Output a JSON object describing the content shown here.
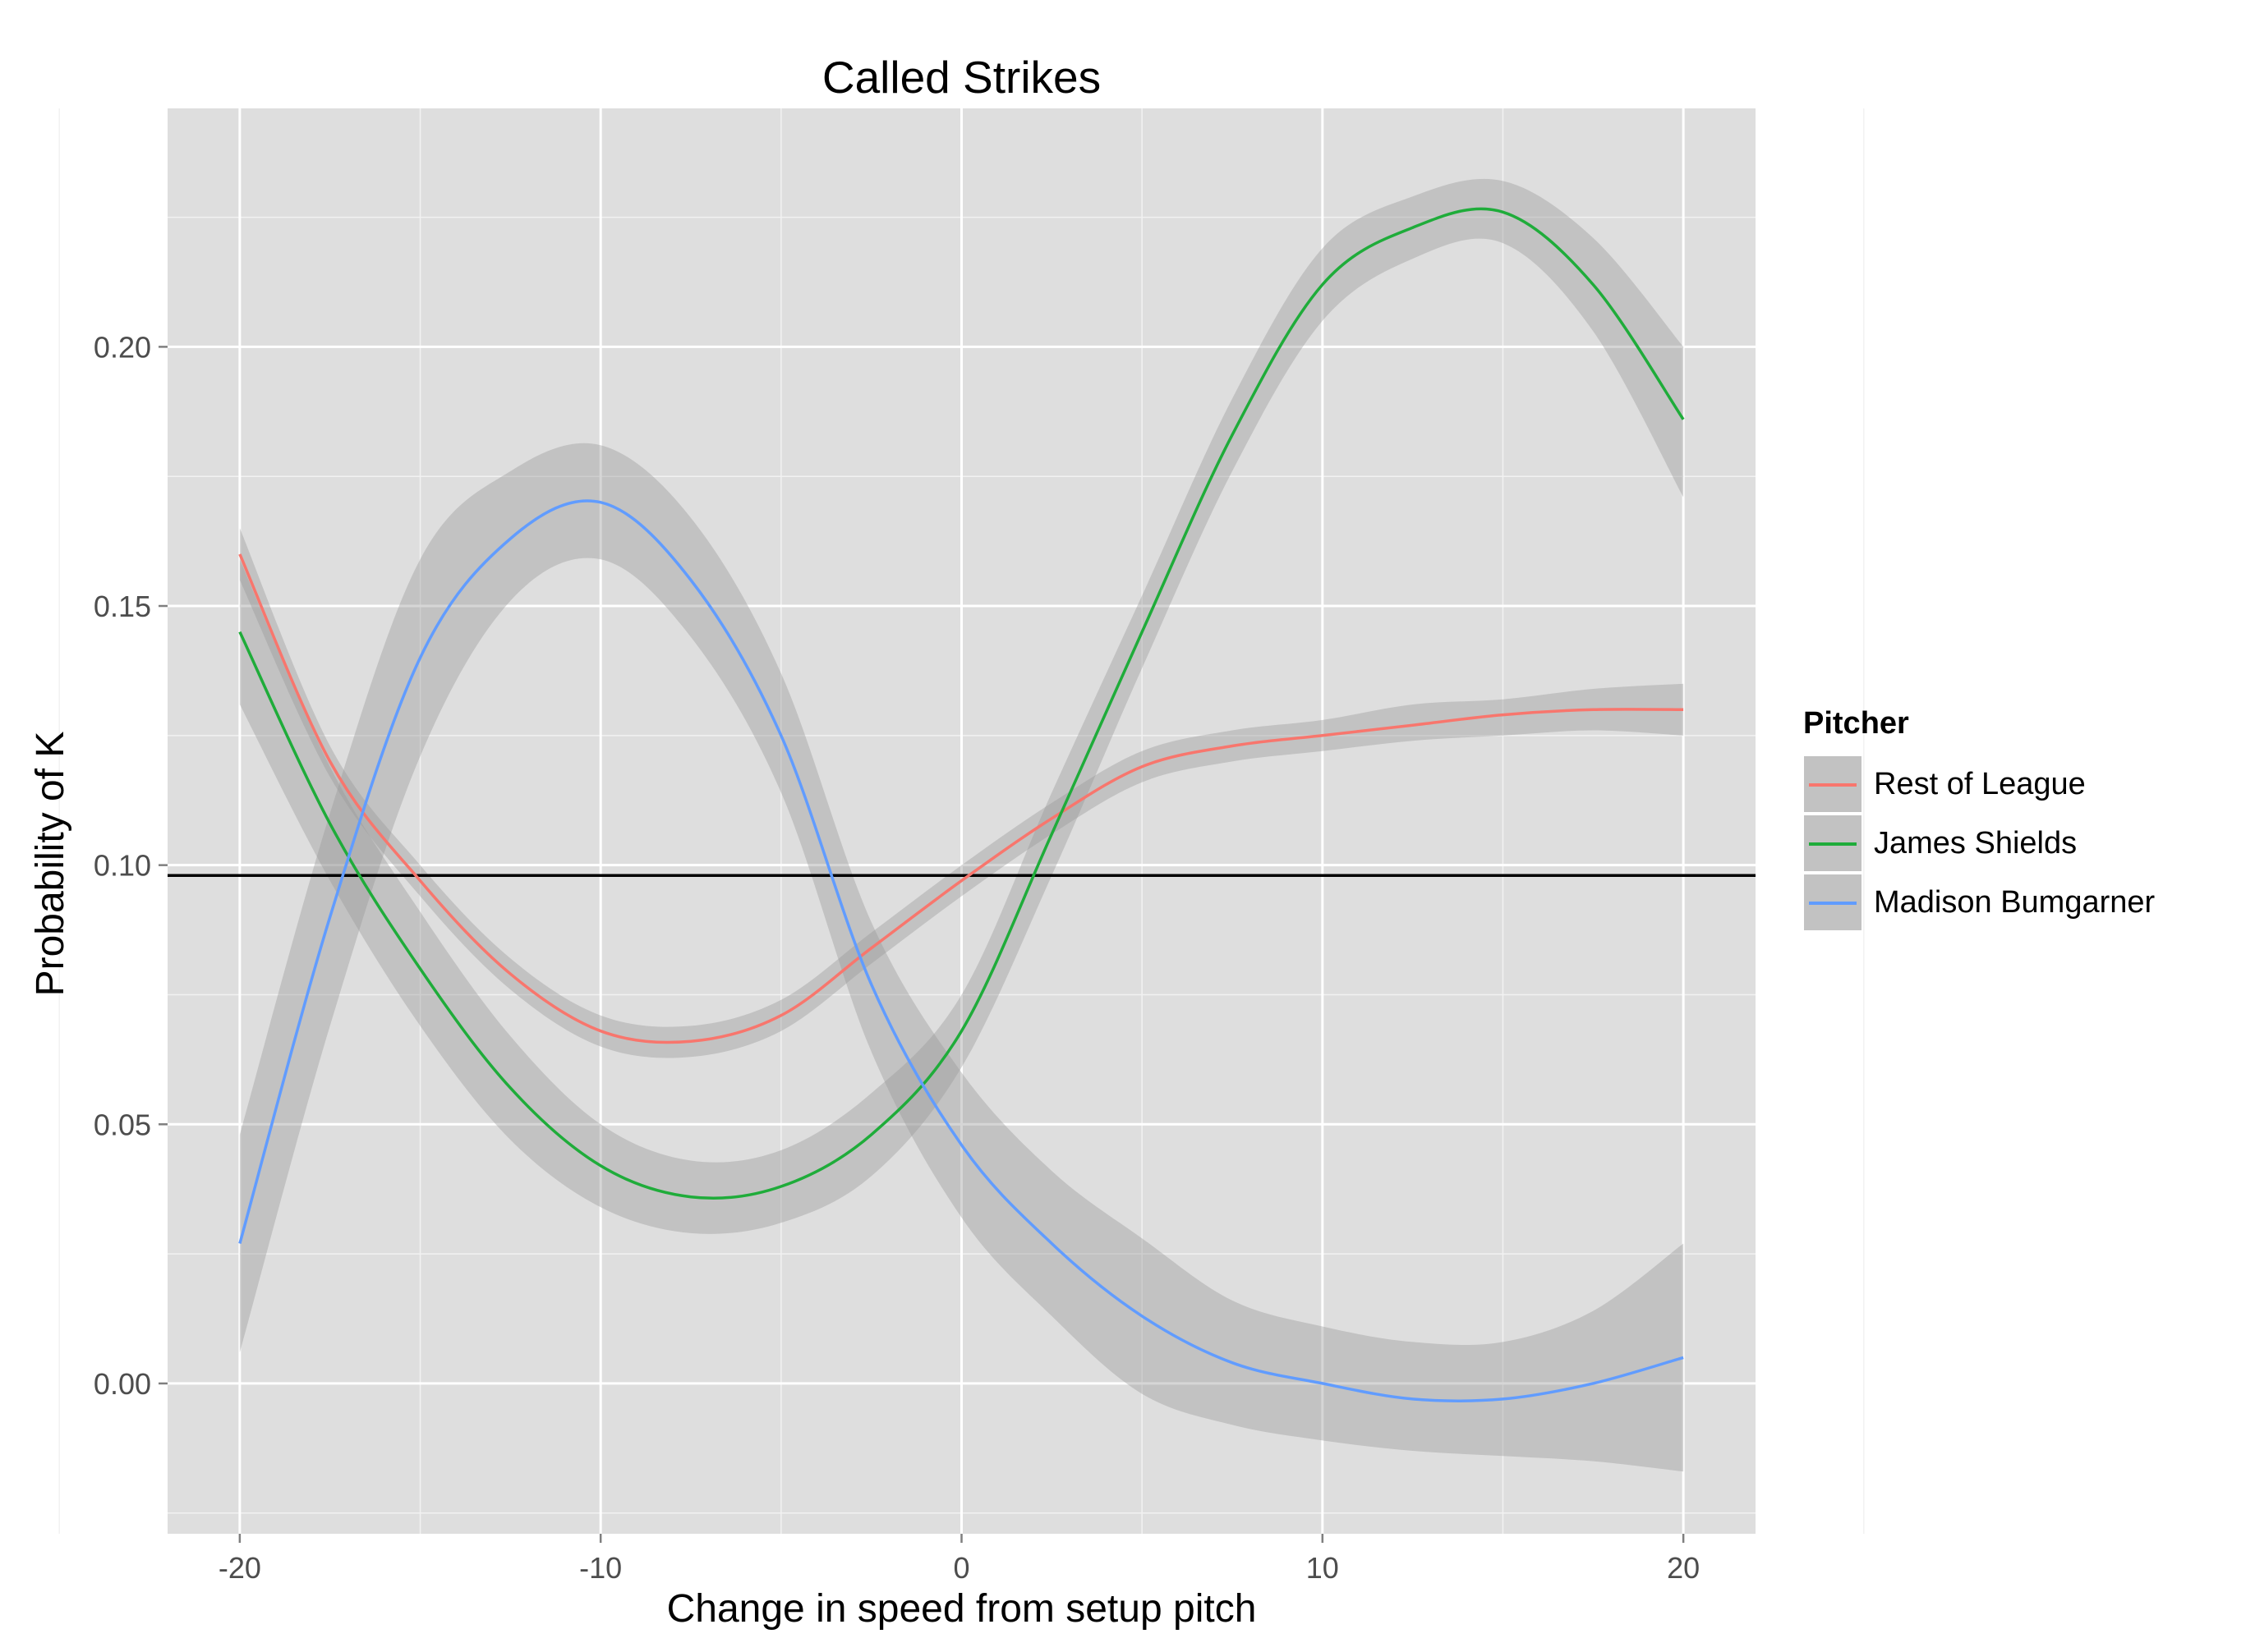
{
  "chart_data": {
    "type": "line",
    "title": "Called Strikes",
    "xlabel": "Change in speed from setup pitch",
    "ylabel": "Probability of K",
    "xlim": [
      -22,
      22
    ],
    "ylim": [
      -0.029,
      0.246
    ],
    "x_ticks": [
      -20,
      -10,
      0,
      10,
      20
    ],
    "x_tick_labels": [
      "-20",
      "-10",
      "0",
      "10",
      "20"
    ],
    "y_ticks": [
      0.0,
      0.05,
      0.1,
      0.15,
      0.2
    ],
    "y_tick_labels": [
      "0.00",
      "0.05",
      "0.10",
      "0.15",
      "0.20"
    ],
    "grid": true,
    "panel_background": "#dedede",
    "reference_line": {
      "y": 0.098,
      "color": "#000000"
    },
    "legend": {
      "title": "Pitcher",
      "position": "right"
    },
    "x": [
      -20,
      -17.5,
      -15,
      -12.5,
      -10,
      -7.5,
      -5,
      -2.5,
      0,
      2.5,
      5,
      7.5,
      10,
      12.5,
      15,
      17.5,
      20
    ],
    "series": [
      {
        "name": "Rest of League",
        "color": "#f8766d",
        "values": [
          0.16,
          0.12,
          0.097,
          0.079,
          0.068,
          0.066,
          0.071,
          0.084,
          0.097,
          0.109,
          0.119,
          0.123,
          0.125,
          0.127,
          0.129,
          0.13,
          0.13
        ],
        "lower": [
          0.155,
          0.117,
          0.094,
          0.076,
          0.065,
          0.063,
          0.068,
          0.081,
          0.094,
          0.106,
          0.116,
          0.12,
          0.122,
          0.124,
          0.125,
          0.126,
          0.125
        ],
        "upper": [
          0.165,
          0.123,
          0.1,
          0.082,
          0.071,
          0.069,
          0.074,
          0.087,
          0.1,
          0.112,
          0.122,
          0.126,
          0.128,
          0.131,
          0.132,
          0.134,
          0.135
        ]
      },
      {
        "name": "James Shields",
        "color": "#1fac3a",
        "values": [
          0.145,
          0.108,
          0.08,
          0.057,
          0.042,
          0.036,
          0.038,
          0.048,
          0.068,
          0.106,
          0.145,
          0.183,
          0.212,
          0.223,
          0.226,
          0.212,
          0.186
        ],
        "lower": [
          0.131,
          0.097,
          0.069,
          0.047,
          0.034,
          0.029,
          0.031,
          0.04,
          0.061,
          0.098,
          0.138,
          0.176,
          0.205,
          0.217,
          0.22,
          0.203,
          0.171
        ],
        "upper": [
          0.159,
          0.119,
          0.091,
          0.067,
          0.05,
          0.043,
          0.045,
          0.056,
          0.075,
          0.114,
          0.152,
          0.19,
          0.219,
          0.229,
          0.232,
          0.221,
          0.2
        ]
      },
      {
        "name": "Madison Bumgarner",
        "color": "#619cff",
        "values": [
          0.027,
          0.09,
          0.14,
          0.163,
          0.17,
          0.155,
          0.125,
          0.077,
          0.046,
          0.027,
          0.013,
          0.004,
          0.0,
          -0.003,
          -0.003,
          0.0,
          0.005
        ],
        "lower": [
          0.006,
          0.069,
          0.121,
          0.151,
          0.159,
          0.144,
          0.114,
          0.064,
          0.032,
          0.013,
          -0.002,
          -0.008,
          -0.011,
          -0.013,
          -0.014,
          -0.015,
          -0.017
        ],
        "upper": [
          0.048,
          0.11,
          0.159,
          0.176,
          0.181,
          0.167,
          0.137,
          0.089,
          0.06,
          0.041,
          0.028,
          0.016,
          0.011,
          0.008,
          0.008,
          0.014,
          0.027
        ]
      }
    ]
  }
}
